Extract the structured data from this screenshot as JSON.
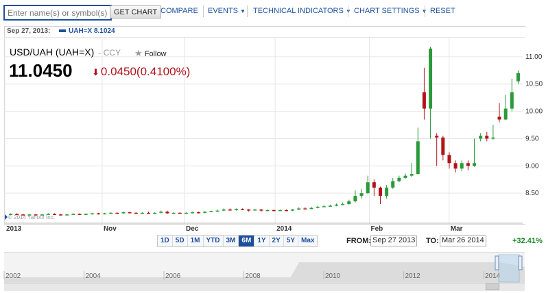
{
  "toolbar": {
    "search_placeholder": "Enter name(s) or symbol(s)",
    "get_chart_label": "GET CHART",
    "compare_label": "COMPARE",
    "events_label": "EVENTS",
    "technical_label": "TECHNICAL INDICATORS",
    "settings_label": "CHART SETTINGS",
    "reset_label": "RESET"
  },
  "topline": {
    "date": "Sep 27, 2013:",
    "series_label": "UAH=X 8.1024"
  },
  "quote": {
    "name": "USD/UAH (UAH=X)",
    "ccy": "- CCY",
    "follow_label": "Follow",
    "price": "11.0450",
    "change": "0.0450",
    "change_pct": "(0.4100%)"
  },
  "watermark": "© 2014 Yahoo! Inc.",
  "range_buttons": [
    "1D",
    "5D",
    "1M",
    "YTD",
    "3M",
    "6M",
    "1Y",
    "2Y",
    "5Y",
    "Max"
  ],
  "range_active": "6M",
  "range": {
    "from_label": "FROM:",
    "from": "Sep 27 2013",
    "to_label": "TO:",
    "to": "Mar 26 2014",
    "change_pct": "+32.41%"
  },
  "overview_years": [
    "2002",
    "2004",
    "2006",
    "2008",
    "2010",
    "2012",
    "2014"
  ],
  "colors": {
    "up": "#2a9a3a",
    "down": "#b0141a",
    "accent": "#1d4f9e",
    "grid": "#e6e6e6"
  },
  "chart_data": {
    "type": "candlestick",
    "title": "USD/UAH (UAH=X)",
    "ylim": [
      8.0,
      11.35
    ],
    "yticks": [
      8.5,
      9.0,
      9.5,
      10.0,
      10.5,
      11.0
    ],
    "x_tick_labels": [
      "2013",
      "Nov",
      "Dec",
      "2014",
      "Feb",
      "Mar"
    ],
    "candles": [
      {
        "o": 8.11,
        "c": 8.12,
        "h": 8.13,
        "l": 8.1
      },
      {
        "o": 8.12,
        "c": 8.11,
        "h": 8.13,
        "l": 8.1
      },
      {
        "o": 8.11,
        "c": 8.1,
        "h": 8.12,
        "l": 8.09
      },
      {
        "o": 8.1,
        "c": 8.11,
        "h": 8.12,
        "l": 8.09
      },
      {
        "o": 8.11,
        "c": 8.1,
        "h": 8.12,
        "l": 8.09
      },
      {
        "o": 8.1,
        "c": 8.11,
        "h": 8.12,
        "l": 8.09
      },
      {
        "o": 8.11,
        "c": 8.12,
        "h": 8.13,
        "l": 8.1
      },
      {
        "o": 8.12,
        "c": 8.11,
        "h": 8.13,
        "l": 8.1
      },
      {
        "o": 8.11,
        "c": 8.1,
        "h": 8.12,
        "l": 8.09
      },
      {
        "o": 8.1,
        "c": 8.11,
        "h": 8.12,
        "l": 8.09
      },
      {
        "o": 8.11,
        "c": 8.12,
        "h": 8.13,
        "l": 8.1
      },
      {
        "o": 8.12,
        "c": 8.11,
        "h": 8.13,
        "l": 8.1
      },
      {
        "o": 8.11,
        "c": 8.12,
        "h": 8.13,
        "l": 8.1
      },
      {
        "o": 8.12,
        "c": 8.13,
        "h": 8.14,
        "l": 8.11
      },
      {
        "o": 8.13,
        "c": 8.12,
        "h": 8.14,
        "l": 8.11
      },
      {
        "o": 8.12,
        "c": 8.13,
        "h": 8.14,
        "l": 8.11
      },
      {
        "o": 8.13,
        "c": 8.14,
        "h": 8.15,
        "l": 8.12
      },
      {
        "o": 8.14,
        "c": 8.13,
        "h": 8.15,
        "l": 8.12
      },
      {
        "o": 8.13,
        "c": 8.15,
        "h": 8.16,
        "l": 8.12
      },
      {
        "o": 8.15,
        "c": 8.14,
        "h": 8.16,
        "l": 8.13
      },
      {
        "o": 8.14,
        "c": 8.13,
        "h": 8.15,
        "l": 8.12
      },
      {
        "o": 8.13,
        "c": 8.14,
        "h": 8.15,
        "l": 8.12
      },
      {
        "o": 8.14,
        "c": 8.13,
        "h": 8.16,
        "l": 8.12
      },
      {
        "o": 8.13,
        "c": 8.14,
        "h": 8.15,
        "l": 8.12
      },
      {
        "o": 8.14,
        "c": 8.16,
        "h": 8.18,
        "l": 8.13
      },
      {
        "o": 8.16,
        "c": 8.13,
        "h": 8.18,
        "l": 8.12
      },
      {
        "o": 8.13,
        "c": 8.14,
        "h": 8.15,
        "l": 8.12
      },
      {
        "o": 8.14,
        "c": 8.13,
        "h": 8.15,
        "l": 8.12
      },
      {
        "o": 8.13,
        "c": 8.14,
        "h": 8.15,
        "l": 8.12
      },
      {
        "o": 8.14,
        "c": 8.15,
        "h": 8.16,
        "l": 8.13
      },
      {
        "o": 8.15,
        "c": 8.14,
        "h": 8.16,
        "l": 8.13
      },
      {
        "o": 8.14,
        "c": 8.16,
        "h": 8.17,
        "l": 8.13
      },
      {
        "o": 8.16,
        "c": 8.17,
        "h": 8.18,
        "l": 8.15
      },
      {
        "o": 8.17,
        "c": 8.18,
        "h": 8.2,
        "l": 8.16
      },
      {
        "o": 8.18,
        "c": 8.2,
        "h": 8.22,
        "l": 8.17
      },
      {
        "o": 8.2,
        "c": 8.19,
        "h": 8.22,
        "l": 8.18
      },
      {
        "o": 8.19,
        "c": 8.21,
        "h": 8.22,
        "l": 8.18
      },
      {
        "o": 8.21,
        "c": 8.2,
        "h": 8.22,
        "l": 8.19
      },
      {
        "o": 8.2,
        "c": 8.19,
        "h": 8.21,
        "l": 8.16
      },
      {
        "o": 8.19,
        "c": 8.2,
        "h": 8.21,
        "l": 8.18
      },
      {
        "o": 8.2,
        "c": 8.18,
        "h": 8.21,
        "l": 8.16
      },
      {
        "o": 8.18,
        "c": 8.19,
        "h": 8.2,
        "l": 8.17
      },
      {
        "o": 8.19,
        "c": 8.18,
        "h": 8.2,
        "l": 8.17
      },
      {
        "o": 8.18,
        "c": 8.19,
        "h": 8.2,
        "l": 8.17
      },
      {
        "o": 8.19,
        "c": 8.18,
        "h": 8.2,
        "l": 8.17
      },
      {
        "o": 8.18,
        "c": 8.2,
        "h": 8.21,
        "l": 8.17
      },
      {
        "o": 8.2,
        "c": 8.22,
        "h": 8.24,
        "l": 8.19
      },
      {
        "o": 8.22,
        "c": 8.21,
        "h": 8.24,
        "l": 8.2
      },
      {
        "o": 8.21,
        "c": 8.23,
        "h": 8.25,
        "l": 8.2
      },
      {
        "o": 8.23,
        "c": 8.25,
        "h": 8.27,
        "l": 8.22
      },
      {
        "o": 8.25,
        "c": 8.26,
        "h": 8.28,
        "l": 8.24
      },
      {
        "o": 8.26,
        "c": 8.27,
        "h": 8.29,
        "l": 8.25
      },
      {
        "o": 8.27,
        "c": 8.29,
        "h": 8.31,
        "l": 8.26
      },
      {
        "o": 8.29,
        "c": 8.3,
        "h": 8.33,
        "l": 8.28
      },
      {
        "o": 8.3,
        "c": 8.35,
        "h": 8.38,
        "l": 8.29
      },
      {
        "o": 8.35,
        "c": 8.45,
        "h": 8.55,
        "l": 8.33
      },
      {
        "o": 8.45,
        "c": 8.5,
        "h": 8.58,
        "l": 8.4
      },
      {
        "o": 8.5,
        "c": 8.7,
        "h": 8.82,
        "l": 8.48
      },
      {
        "o": 8.7,
        "c": 8.6,
        "h": 8.75,
        "l": 8.45
      },
      {
        "o": 8.6,
        "c": 8.45,
        "h": 8.62,
        "l": 8.3
      },
      {
        "o": 8.45,
        "c": 8.6,
        "h": 8.65,
        "l": 8.4
      },
      {
        "o": 8.6,
        "c": 8.72,
        "h": 8.78,
        "l": 8.58
      },
      {
        "o": 8.72,
        "c": 8.78,
        "h": 8.82,
        "l": 8.7
      },
      {
        "o": 8.78,
        "c": 8.82,
        "h": 8.86,
        "l": 8.76
      },
      {
        "o": 8.82,
        "c": 8.85,
        "h": 9.05,
        "l": 8.8
      },
      {
        "o": 8.85,
        "c": 9.45,
        "h": 9.7,
        "l": 8.85
      },
      {
        "o": 10.35,
        "c": 10.05,
        "h": 10.8,
        "l": 9.85
      },
      {
        "o": 10.05,
        "c": 11.15,
        "h": 11.18,
        "l": 9.5
      },
      {
        "o": 9.55,
        "c": 9.52,
        "h": 9.6,
        "l": 9.0
      },
      {
        "o": 9.52,
        "c": 9.2,
        "h": 9.55,
        "l": 9.1
      },
      {
        "o": 9.2,
        "c": 9.05,
        "h": 9.25,
        "l": 8.95
      },
      {
        "o": 9.05,
        "c": 8.95,
        "h": 9.1,
        "l": 8.88
      },
      {
        "o": 8.95,
        "c": 9.05,
        "h": 9.1,
        "l": 8.9
      },
      {
        "o": 9.05,
        "c": 9.0,
        "h": 9.1,
        "l": 8.92
      },
      {
        "o": 9.0,
        "c": 9.05,
        "h": 9.5,
        "l": 8.98
      },
      {
        "o": 9.5,
        "c": 9.55,
        "h": 9.6,
        "l": 9.45
      },
      {
        "o": 9.55,
        "c": 9.5,
        "h": 9.62,
        "l": 9.45
      },
      {
        "o": 9.5,
        "c": 9.52,
        "h": 9.75,
        "l": 9.48
      },
      {
        "o": 9.9,
        "c": 9.85,
        "h": 10.15,
        "l": 9.8
      },
      {
        "o": 9.85,
        "c": 10.05,
        "h": 10.3,
        "l": 9.84
      },
      {
        "o": 10.05,
        "c": 10.35,
        "h": 10.6,
        "l": 10.0
      },
      {
        "o": 10.55,
        "c": 10.7,
        "h": 10.75,
        "l": 10.5
      }
    ]
  }
}
